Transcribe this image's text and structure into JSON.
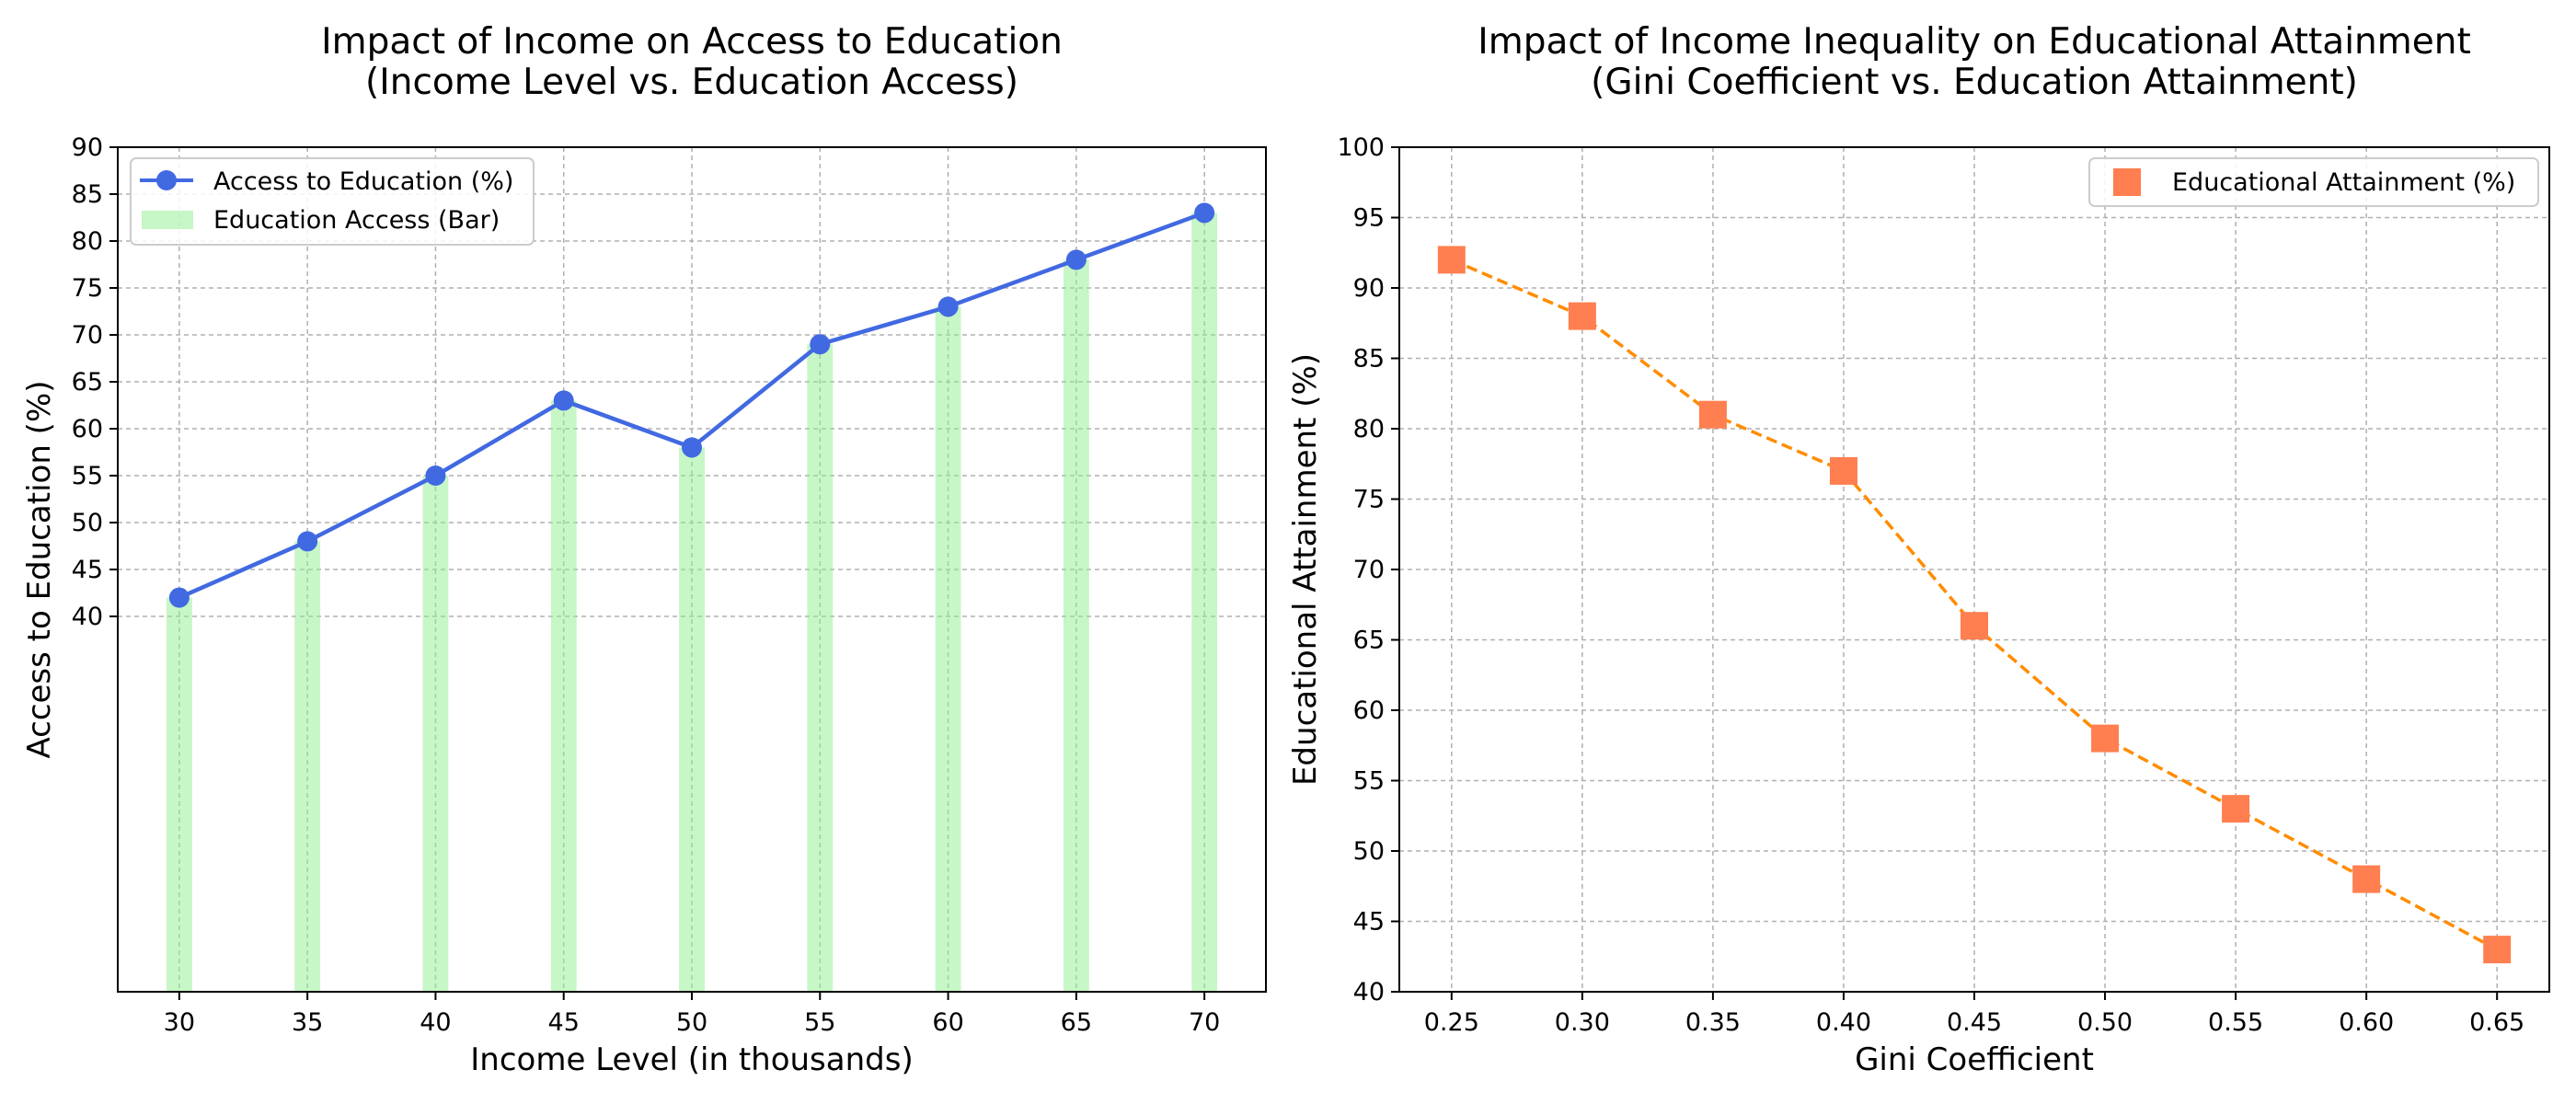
{
  "chart_data": [
    {
      "type": "line",
      "title": "Impact of Income on Access to Education",
      "subtitle": "(Income Level vs. Education Access)",
      "xlabel": "Income Level (in thousands)",
      "ylabel": "Access to Education (%)",
      "x": [
        30,
        35,
        40,
        45,
        50,
        55,
        60,
        65,
        70
      ],
      "xlim": [
        27.6,
        72.4
      ],
      "ylim": [
        0,
        90
      ],
      "xticks": [
        "30",
        "35",
        "40",
        "45",
        "50",
        "55",
        "60",
        "65",
        "70"
      ],
      "yticks": [
        "40",
        "45",
        "50",
        "55",
        "60",
        "65",
        "70",
        "75",
        "80",
        "85",
        "90"
      ],
      "grid": true,
      "legend_position": "top-left",
      "series": [
        {
          "name": "Access to Education (%)",
          "kind": "line",
          "marker": "circle",
          "color": "#4169e1",
          "values": [
            42,
            48,
            55,
            63,
            58,
            69,
            73,
            78,
            83
          ]
        },
        {
          "name": "Education Access (Bar)",
          "kind": "bar",
          "color": "#90ee90",
          "values": [
            42,
            48,
            55,
            63,
            58,
            69,
            73,
            78,
            83
          ]
        }
      ]
    },
    {
      "type": "scatter",
      "title": "Impact of Income Inequality on Educational Attainment",
      "subtitle": "(Gini Coefficient vs. Education Attainment)",
      "xlabel": "Gini Coefficient",
      "ylabel": "Educational Attainment (%)",
      "x": [
        0.25,
        0.3,
        0.35,
        0.4,
        0.45,
        0.5,
        0.55,
        0.6,
        0.65
      ],
      "xlim": [
        0.23,
        0.67
      ],
      "ylim": [
        40,
        100
      ],
      "xticks": [
        "0.25",
        "0.30",
        "0.35",
        "0.40",
        "0.45",
        "0.50",
        "0.55",
        "0.60",
        "0.65"
      ],
      "yticks": [
        "40",
        "45",
        "50",
        "55",
        "60",
        "65",
        "70",
        "75",
        "80",
        "85",
        "90",
        "95",
        "100"
      ],
      "grid": true,
      "legend_position": "top-right",
      "series": [
        {
          "name": "Educational Attainment (%)",
          "kind": "scatter",
          "marker": "square",
          "color": "#ff7f50",
          "line_color": "#ff8c00",
          "line_style": "dashed",
          "values": [
            92,
            88,
            81,
            77,
            66,
            58,
            53,
            48,
            43
          ]
        }
      ]
    }
  ]
}
